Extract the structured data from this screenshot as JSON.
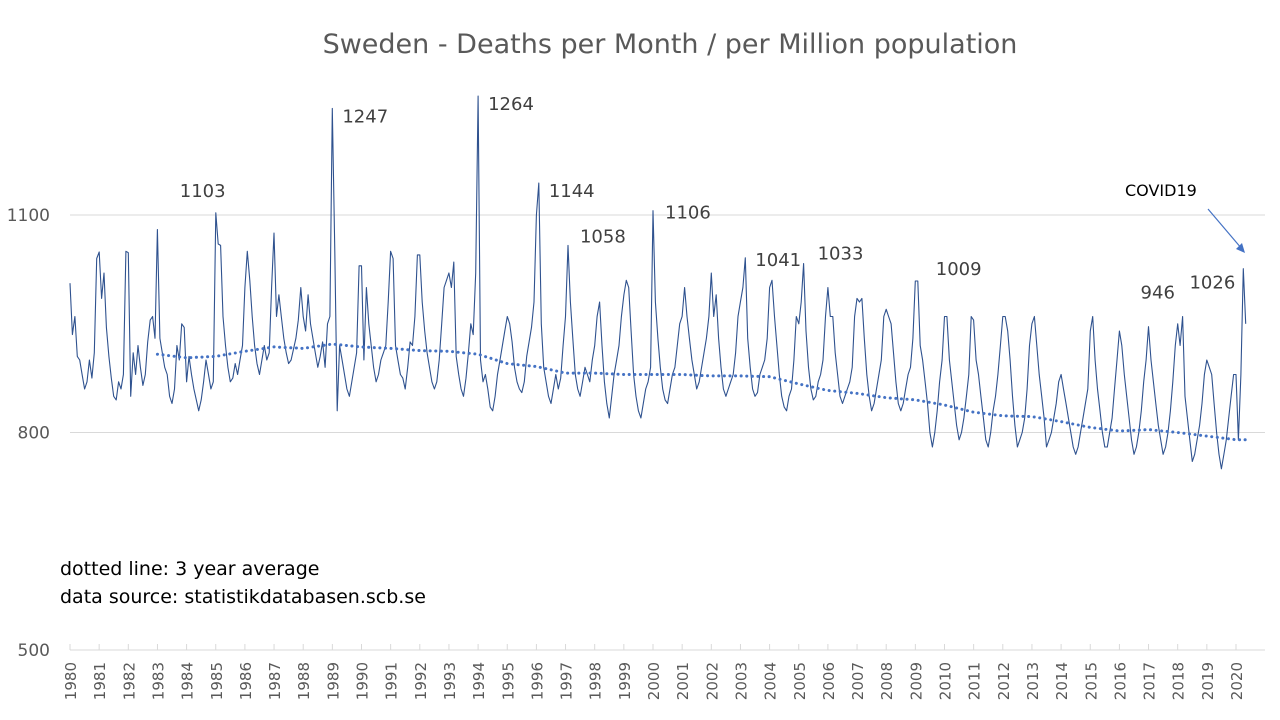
{
  "chart_data": {
    "type": "line",
    "title": "Sweden - Deaths per Month / per Million population",
    "xlabel": "",
    "ylabel": "",
    "ylim": [
      500,
      1280
    ],
    "yticks": [
      500,
      800,
      1100
    ],
    "grid": true,
    "x_tick_labels": [
      "1980",
      "1981",
      "1982",
      "1983",
      "1984",
      "1985",
      "1986",
      "1987",
      "1988",
      "1989",
      "1990",
      "1991",
      "1992",
      "1993",
      "1994",
      "1995",
      "1996",
      "1997",
      "1998",
      "1999",
      "2000",
      "2001",
      "2002",
      "2003",
      "2004",
      "2005",
      "2006",
      "2007",
      "2008",
      "2009",
      "2010",
      "2011",
      "2012",
      "2013",
      "2014",
      "2015",
      "2016",
      "2017",
      "2018",
      "2019",
      "2020"
    ],
    "start_year": 1980,
    "notes": [
      "dotted line: 3 year average",
      "data source: statistikdatabasen.scb.se"
    ],
    "covid_annotation": "COVID19",
    "peak_labels": [
      {
        "year": 1985,
        "month": 1,
        "label": "1103"
      },
      {
        "year": 1989,
        "month": 1,
        "label": "1247"
      },
      {
        "year": 1994,
        "month": 1,
        "label": "1264"
      },
      {
        "year": 1996,
        "month": 2,
        "label": "1144"
      },
      {
        "year": 1997,
        "month": 2,
        "label": "1058"
      },
      {
        "year": 2000,
        "month": 1,
        "label": "1106"
      },
      {
        "year": 2003,
        "month": 3,
        "label": "1041"
      },
      {
        "year": 2005,
        "month": 3,
        "label": "1033"
      },
      {
        "year": 2009,
        "month": 2,
        "label": "1009"
      },
      {
        "year": 2017,
        "month": 1,
        "label": "946"
      },
      {
        "year": 2020,
        "month": 4,
        "label": "1026"
      }
    ],
    "series": [
      {
        "name": "Deaths per Month per Million",
        "style": "solid",
        "color": "#2f528f",
        "monthly_by_year": {
          "1980": [
            1006,
            935,
            960,
            905,
            900,
            880,
            860,
            870,
            900,
            875,
            910,
            1040
          ],
          "1981": [
            1049,
            985,
            1020,
            945,
            905,
            875,
            850,
            845,
            870,
            860,
            880,
            1050
          ],
          "1982": [
            1048,
            850,
            910,
            880,
            920,
            890,
            865,
            880,
            925,
            955,
            960,
            930
          ],
          "1983": [
            1080,
            930,
            910,
            890,
            880,
            850,
            840,
            860,
            920,
            900,
            950,
            945
          ],
          "1984": [
            870,
            905,
            880,
            860,
            845,
            830,
            845,
            870,
            900,
            880,
            860,
            870
          ],
          "1985": [
            1103,
            1060,
            1058,
            960,
            920,
            890,
            870,
            875,
            895,
            880,
            900,
            920
          ],
          "1986": [
            1000,
            1050,
            1010,
            960,
            920,
            895,
            880,
            900,
            920,
            900,
            910,
            1000
          ],
          "1987": [
            1075,
            960,
            990,
            960,
            930,
            910,
            895,
            900,
            915,
            930,
            955,
            1000
          ],
          "1988": [
            960,
            940,
            990,
            950,
            930,
            910,
            890,
            905,
            925,
            890,
            950,
            960
          ],
          "1989": [
            1247,
            1050,
            830,
            920,
            900,
            880,
            860,
            850,
            870,
            890,
            910,
            1030
          ],
          "1990": [
            1030,
            900,
            1000,
            950,
            920,
            890,
            870,
            880,
            900,
            910,
            920,
            980
          ],
          "1991": [
            1050,
            1040,
            920,
            900,
            880,
            875,
            860,
            890,
            925,
            920,
            960,
            1045
          ],
          "1992": [
            1045,
            980,
            940,
            910,
            890,
            870,
            860,
            870,
            900,
            950,
            1000,
            1010
          ],
          "1993": [
            1020,
            1000,
            1035,
            905,
            880,
            860,
            850,
            875,
            910,
            950,
            935,
            1020
          ],
          "1994": [
            1264,
            900,
            870,
            880,
            860,
            835,
            830,
            850,
            880,
            900,
            920,
            940
          ],
          "1995": [
            960,
            950,
            925,
            890,
            870,
            860,
            855,
            870,
            905,
            925,
            945,
            980
          ],
          "1996": [
            1100,
            1144,
            950,
            890,
            870,
            850,
            840,
            860,
            880,
            860,
            875,
            920
          ],
          "1997": [
            960,
            1058,
            980,
            930,
            880,
            860,
            850,
            870,
            890,
            880,
            870,
            900
          ],
          "1998": [
            920,
            960,
            980,
            920,
            870,
            840,
            820,
            850,
            880,
            900,
            920,
            960
          ],
          "1999": [
            990,
            1010,
            1000,
            940,
            880,
            850,
            830,
            820,
            840,
            860,
            870,
            890
          ],
          "2000": [
            1106,
            980,
            930,
            890,
            860,
            845,
            840,
            860,
            880,
            890,
            920,
            950
          ],
          "2001": [
            960,
            1000,
            960,
            930,
            900,
            880,
            860,
            870,
            890,
            910,
            930,
            960
          ],
          "2002": [
            1020,
            960,
            990,
            930,
            890,
            860,
            850,
            860,
            870,
            880,
            910,
            960
          ],
          "2003": [
            980,
            1000,
            1041,
            930,
            890,
            860,
            850,
            855,
            880,
            890,
            900,
            930
          ],
          "2004": [
            1000,
            1010,
            960,
            920,
            880,
            850,
            835,
            830,
            850,
            860,
            900,
            960
          ],
          "2005": [
            950,
            980,
            1033,
            940,
            890,
            860,
            845,
            850,
            870,
            880,
            900,
            960
          ],
          "2006": [
            1000,
            960,
            960,
            910,
            880,
            850,
            840,
            850,
            860,
            870,
            890,
            960
          ],
          "2007": [
            985,
            980,
            985,
            930,
            880,
            850,
            830,
            840,
            860,
            880,
            900,
            960
          ],
          "2008": [
            970,
            960,
            950,
            910,
            870,
            840,
            830,
            840,
            860,
            880,
            890,
            930
          ],
          "2009": [
            1009,
            1009,
            920,
            900,
            870,
            840,
            800,
            780,
            800,
            830,
            870,
            900
          ],
          "2010": [
            960,
            960,
            900,
            870,
            840,
            810,
            790,
            800,
            820,
            850,
            880,
            960
          ],
          "2011": [
            955,
            900,
            880,
            850,
            820,
            790,
            780,
            800,
            830,
            850,
            880,
            920
          ],
          "2012": [
            960,
            960,
            940,
            900,
            850,
            810,
            780,
            790,
            800,
            820,
            860,
            920
          ],
          "2013": [
            950,
            960,
            920,
            880,
            850,
            820,
            780,
            790,
            800,
            820,
            840,
            870
          ],
          "2014": [
            880,
            860,
            840,
            820,
            800,
            780,
            770,
            780,
            800,
            820,
            840,
            860
          ],
          "2015": [
            940,
            960,
            900,
            860,
            830,
            800,
            780,
            780,
            800,
            820,
            860,
            900
          ],
          "2016": [
            940,
            920,
            880,
            850,
            820,
            790,
            770,
            780,
            800,
            830,
            870,
            900
          ],
          "2017": [
            946,
            900,
            870,
            840,
            810,
            790,
            770,
            780,
            800,
            830,
            870,
            920
          ],
          "2018": [
            950,
            920,
            960,
            850,
            820,
            790,
            760,
            770,
            790,
            810,
            840,
            880
          ],
          "2019": [
            900,
            890,
            880,
            840,
            800,
            770,
            750,
            770,
            790,
            820,
            850,
            880
          ],
          "2020": [
            880,
            790,
            880,
            1026,
            950
          ]
        }
      },
      {
        "name": "3 year average",
        "style": "dotted",
        "color": "#4472c4",
        "start": {
          "year": 1983,
          "month": 1
        },
        "yearly_anchor_values": {
          "1983": 908,
          "1984": 903,
          "1985": 905,
          "1986": 912,
          "1987": 918,
          "1988": 916,
          "1989": 922,
          "1990": 918,
          "1991": 916,
          "1992": 913,
          "1993": 912,
          "1994": 908,
          "1995": 895,
          "1996": 891,
          "1997": 882,
          "1998": 882,
          "1999": 880,
          "2000": 880,
          "2001": 880,
          "2002": 878,
          "2003": 878,
          "2004": 877,
          "2005": 867,
          "2006": 858,
          "2007": 854,
          "2008": 848,
          "2009": 845,
          "2010": 838,
          "2011": 828,
          "2012": 823,
          "2013": 822,
          "2014": 815,
          "2015": 807,
          "2016": 802,
          "2017": 804,
          "2018": 800,
          "2019": 795,
          "2020": 790
        }
      }
    ]
  }
}
